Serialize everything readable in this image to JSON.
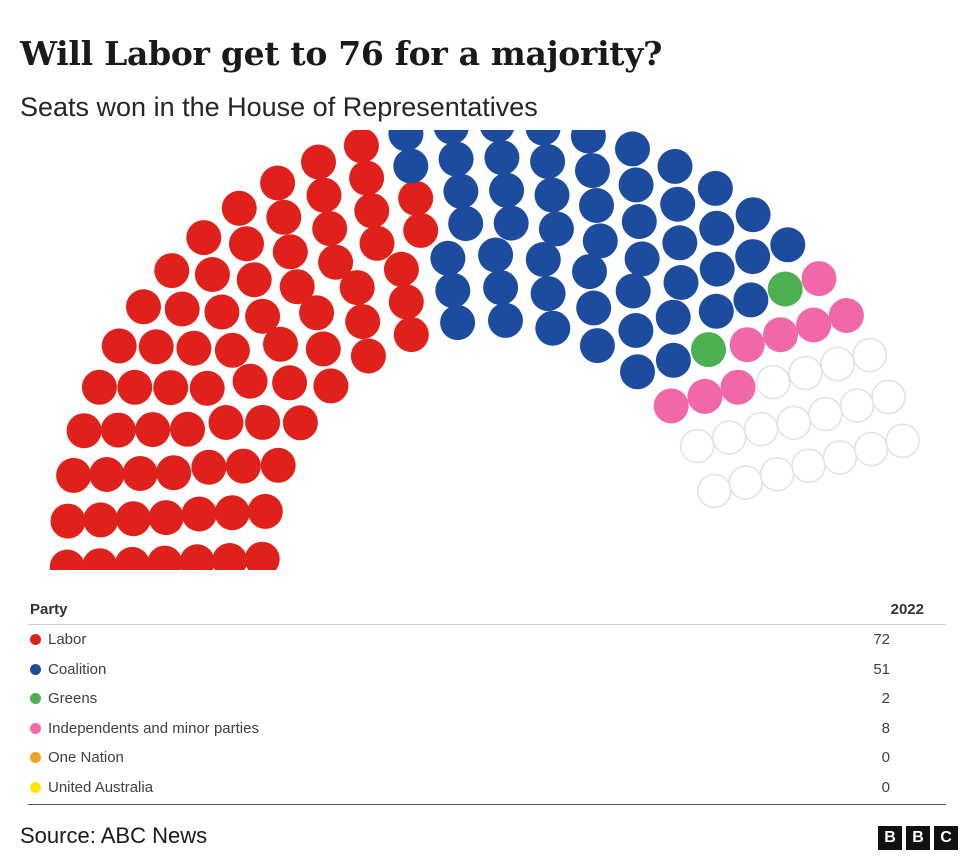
{
  "header": {
    "title": "Will Labor get to 76 for a majority?",
    "subtitle": "Seats won in the House of Representatives"
  },
  "chart_data": {
    "type": "hemicycle",
    "total_seats": 151,
    "series": [
      {
        "name": "Labor",
        "value": 72,
        "color": "#e0201b"
      },
      {
        "name": "Coalition",
        "value": 51,
        "color": "#1d4c9e"
      },
      {
        "name": "Greens",
        "value": 2,
        "color": "#4caf50"
      },
      {
        "name": "Independents and minor parties",
        "value": 8,
        "color": "#f068a8"
      },
      {
        "name": "One Nation",
        "value": 0,
        "color": "#f0a323"
      },
      {
        "name": "United Australia",
        "value": 0,
        "color": "#ffe600"
      }
    ],
    "undeclared": {
      "value": 18,
      "color": "#ffffff",
      "stroke": "#e2e2e2"
    }
  },
  "legend": {
    "party_header": "Party",
    "year_header": "2022",
    "rows": [
      {
        "label": "Labor",
        "value": "72",
        "color": "#e0201b"
      },
      {
        "label": "Coalition",
        "value": "51",
        "color": "#1d4c9e"
      },
      {
        "label": "Greens",
        "value": "2",
        "color": "#4caf50"
      },
      {
        "label": "Independents and minor parties",
        "value": "8",
        "color": "#f068a8"
      },
      {
        "label": "One Nation",
        "value": "0",
        "color": "#f0a323"
      },
      {
        "label": "United Australia",
        "value": "0",
        "color": "#ffe600"
      }
    ]
  },
  "footer": {
    "source": "Source: ABC News",
    "logo": [
      "B",
      "B",
      "C"
    ]
  }
}
